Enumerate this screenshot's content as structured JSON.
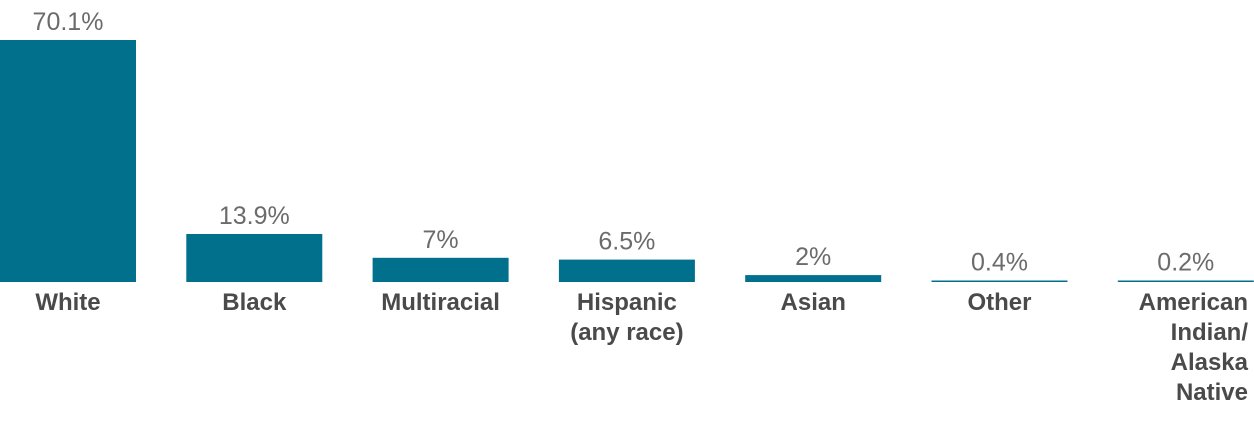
{
  "chart_data": {
    "type": "bar",
    "categories": [
      "White",
      "Black",
      "Multiracial",
      "Hispanic (any race)",
      "Asian",
      "Other",
      "American Indian/ Alaska Native"
    ],
    "category_label_lines": [
      [
        "White"
      ],
      [
        "Black"
      ],
      [
        "Multiracial"
      ],
      [
        "Hispanic",
        "(any race)"
      ],
      [
        "Asian"
      ],
      [
        "Other"
      ],
      [
        "American",
        "Indian/",
        "Alaska",
        "Native"
      ]
    ],
    "values": [
      70.1,
      13.9,
      7,
      6.5,
      2,
      0.4,
      0.2
    ],
    "data_labels": [
      "70.1%",
      "13.9%",
      "7%",
      "6.5%",
      "2%",
      "0.4%",
      "0.2%"
    ],
    "unit": "%",
    "ylim": [
      0,
      70.1
    ],
    "grid": false,
    "legend": "none"
  },
  "colors": {
    "bar": "#00708d",
    "value_text": "#6b6b6b",
    "category_text": "#4a4a4a"
  }
}
